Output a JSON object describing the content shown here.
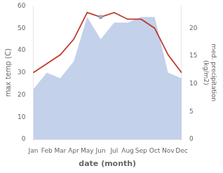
{
  "chart_data": {
    "type": "line",
    "categories": [
      "Jan",
      "Feb",
      "Mar",
      "Apr",
      "May",
      "Jun",
      "Jul",
      "Aug",
      "Sep",
      "Oct",
      "Nov",
      "Dec"
    ],
    "xlabel": "date (month)",
    "ylabel": "max temp (C)",
    "y2label": "med. precipitation\n(kg/m2)",
    "ylim": [
      0,
      60
    ],
    "yticks": [
      0,
      10,
      20,
      30,
      40,
      50,
      60
    ],
    "y2lim": [
      0,
      24
    ],
    "y2ticks": [
      0,
      5,
      10,
      15,
      20
    ],
    "grid": false,
    "legend": false,
    "series": [
      {
        "type": "area",
        "color": "#b8c9e8",
        "axis": "y2",
        "values": [
          9,
          12,
          11,
          14,
          22,
          18,
          21,
          21,
          22,
          22,
          12,
          11
        ]
      },
      {
        "type": "line",
        "color": "#c0392b",
        "values": [
          30,
          34,
          38,
          45,
          57,
          55,
          57,
          54,
          54,
          50,
          38,
          30
        ]
      },
      {
        "type": "scatter",
        "color": "#8eaac8",
        "marker": "circle",
        "values": [
          null,
          null,
          null,
          null,
          null,
          55,
          null,
          null,
          null,
          null,
          null,
          null
        ]
      }
    ]
  }
}
